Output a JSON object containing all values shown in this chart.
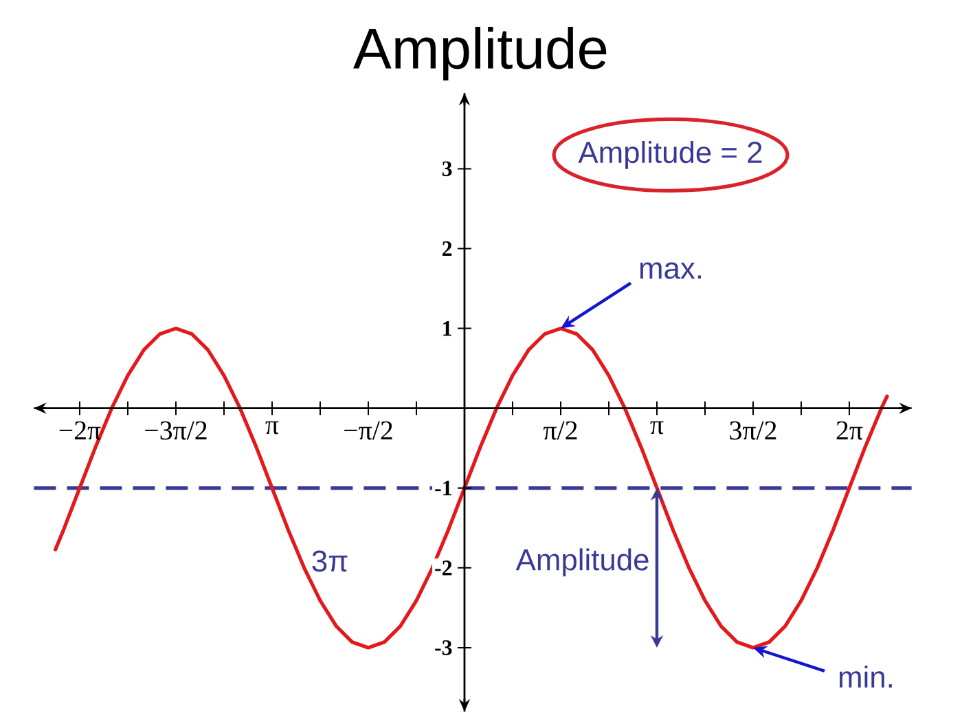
{
  "chart_data": {
    "type": "line",
    "title": "Amplitude",
    "x": [
      -6.68,
      -6.545,
      -6.283,
      -6.021,
      -5.76,
      -5.498,
      -5.236,
      -4.974,
      -4.712,
      -4.451,
      -4.189,
      -3.927,
      -3.665,
      -3.403,
      -3.142,
      -2.88,
      -2.618,
      -2.356,
      -2.094,
      -1.833,
      -1.571,
      -1.309,
      -1.047,
      -0.785,
      -0.524,
      -0.262,
      0,
      0.262,
      0.524,
      0.785,
      1.047,
      1.309,
      1.571,
      1.833,
      2.094,
      2.356,
      2.618,
      2.88,
      3.142,
      3.403,
      3.665,
      3.927,
      4.189,
      4.451,
      4.712,
      4.974,
      5.236,
      5.498,
      5.76,
      6.021,
      6.283,
      6.545,
      6.807,
      6.9
    ],
    "values": [
      -1.77,
      -1.52,
      -1,
      -0.48,
      0,
      0.41,
      0.73,
      0.93,
      1,
      0.93,
      0.73,
      0.41,
      0,
      -0.48,
      -1,
      -1.52,
      -2,
      -2.41,
      -2.73,
      -2.93,
      -3,
      -2.93,
      -2.73,
      -2.41,
      -2,
      -1.52,
      -1,
      -0.48,
      0,
      0.41,
      0.73,
      0.93,
      1,
      0.93,
      0.73,
      0.41,
      0,
      -0.48,
      -1,
      -1.52,
      -2,
      -2.41,
      -2.73,
      -2.93,
      -3,
      -2.93,
      -2.73,
      -2.41,
      -2,
      -1.52,
      -1,
      -0.48,
      0,
      0.15
    ],
    "color": "#e3191c",
    "xlim": [
      -7.03,
      7.3
    ],
    "ylim": [
      -3.8,
      3.95
    ],
    "xticks": [
      {
        "value": -6.2832,
        "label": "−2π"
      },
      {
        "value": -5.4978,
        "label": null
      },
      {
        "value": -4.7124,
        "label": "−3π/2"
      },
      {
        "value": -3.927,
        "label": null
      },
      {
        "value": -3.1416,
        "label": "π"
      },
      {
        "value": -2.3562,
        "label": null
      },
      {
        "value": -1.5708,
        "label": "−π/2"
      },
      {
        "value": -0.7854,
        "label": null
      },
      {
        "value": 0.7854,
        "label": null
      },
      {
        "value": 1.5708,
        "label": "π/2"
      },
      {
        "value": 2.3562,
        "label": null
      },
      {
        "value": 3.1416,
        "label": "π"
      },
      {
        "value": 3.927,
        "label": null
      },
      {
        "value": 4.7124,
        "label": "3π/2"
      },
      {
        "value": 5.4978,
        "label": null
      },
      {
        "value": 6.2832,
        "label": "2π"
      }
    ],
    "yticks": [
      -3,
      -2,
      -1,
      1,
      2,
      3
    ],
    "ref_lines": [
      {
        "axis": "y",
        "value": -1,
        "color": "#3a3a96",
        "line_style": "dashed"
      }
    ],
    "annotations": [
      "Amplitude = 2",
      {
        "text": "max.",
        "x": 1.5708,
        "y": 1
      },
      "3π",
      "Amplitude",
      {
        "text": "min.",
        "x": 4.7124,
        "y": -3
      }
    ]
  }
}
